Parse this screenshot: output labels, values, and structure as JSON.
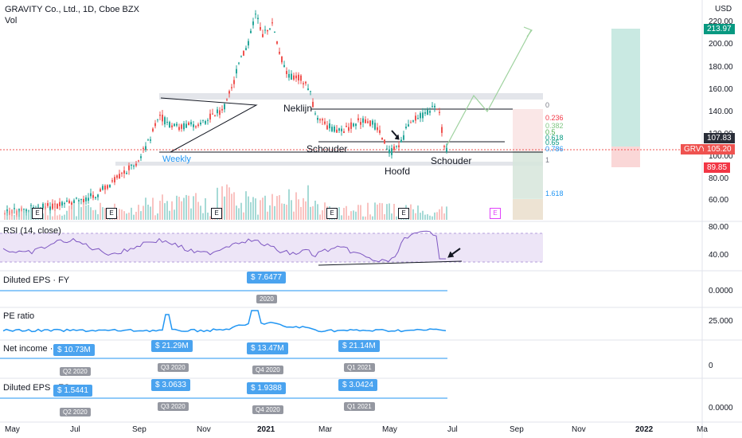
{
  "header": {
    "title": "GRAVITY Co., Ltd., 1D, Cboe BZX",
    "vol": "Vol",
    "currency": "USD"
  },
  "price_axis": [
    "220.00",
    "200.00",
    "180.00",
    "160.00",
    "140.00",
    "120.00",
    "100.00",
    "80.00",
    "60.00"
  ],
  "tags": {
    "t1": "213.97",
    "t2": "107.83",
    "t3": "105.20",
    "t4": "89.85",
    "ticker": "GRVY"
  },
  "annotations": {
    "neklijn": "Neklijn",
    "schouder_l": "Schouder",
    "hoofd": "Hoofd",
    "schouder_r": "Schouder",
    "weekly": "Weekly"
  },
  "fib": {
    "f0": "0",
    "f236": "0.236",
    "f382": "0.382",
    "f5": "0.5",
    "f618": "0.618",
    "f65": "0.65",
    "f786": "0.786",
    "f1": "1",
    "f1618": "1.618"
  },
  "earnings_marker": "E",
  "rsi": {
    "label": "RSI (14, close)",
    "ticks": [
      "80.00",
      "40.00"
    ]
  },
  "eps_fy": {
    "label": "Diluted EPS · FY",
    "value": "$ 7.6477",
    "period": "2020",
    "tick": "0.0000"
  },
  "pe": {
    "label": "PE ratio",
    "tick": "25.000"
  },
  "net_income": {
    "label": "Net income · FQ",
    "tick": "0",
    "items": [
      {
        "value": "$ 10.73M",
        "period": "Q2 2020"
      },
      {
        "value": "$ 21.29M",
        "period": "Q3 2020"
      },
      {
        "value": "$ 13.47M",
        "period": "Q4 2020"
      },
      {
        "value": "$ 21.14M",
        "period": "Q1 2021"
      }
    ]
  },
  "eps_fq": {
    "label": "Diluted EPS · FQ",
    "tick": "0.0000",
    "items": [
      {
        "value": "$ 1.5441",
        "period": "Q2 2020"
      },
      {
        "value": "$ 3.0633",
        "period": "Q3 2020"
      },
      {
        "value": "$ 1.9388",
        "period": "Q4 2020"
      },
      {
        "value": "$ 3.0424",
        "period": "Q1 2021"
      }
    ]
  },
  "time_axis": [
    "May",
    "Jul",
    "Sep",
    "Nov",
    "2021",
    "Mar",
    "May",
    "Jul",
    "Sep",
    "Nov",
    "2022",
    "Ma"
  ]
}
